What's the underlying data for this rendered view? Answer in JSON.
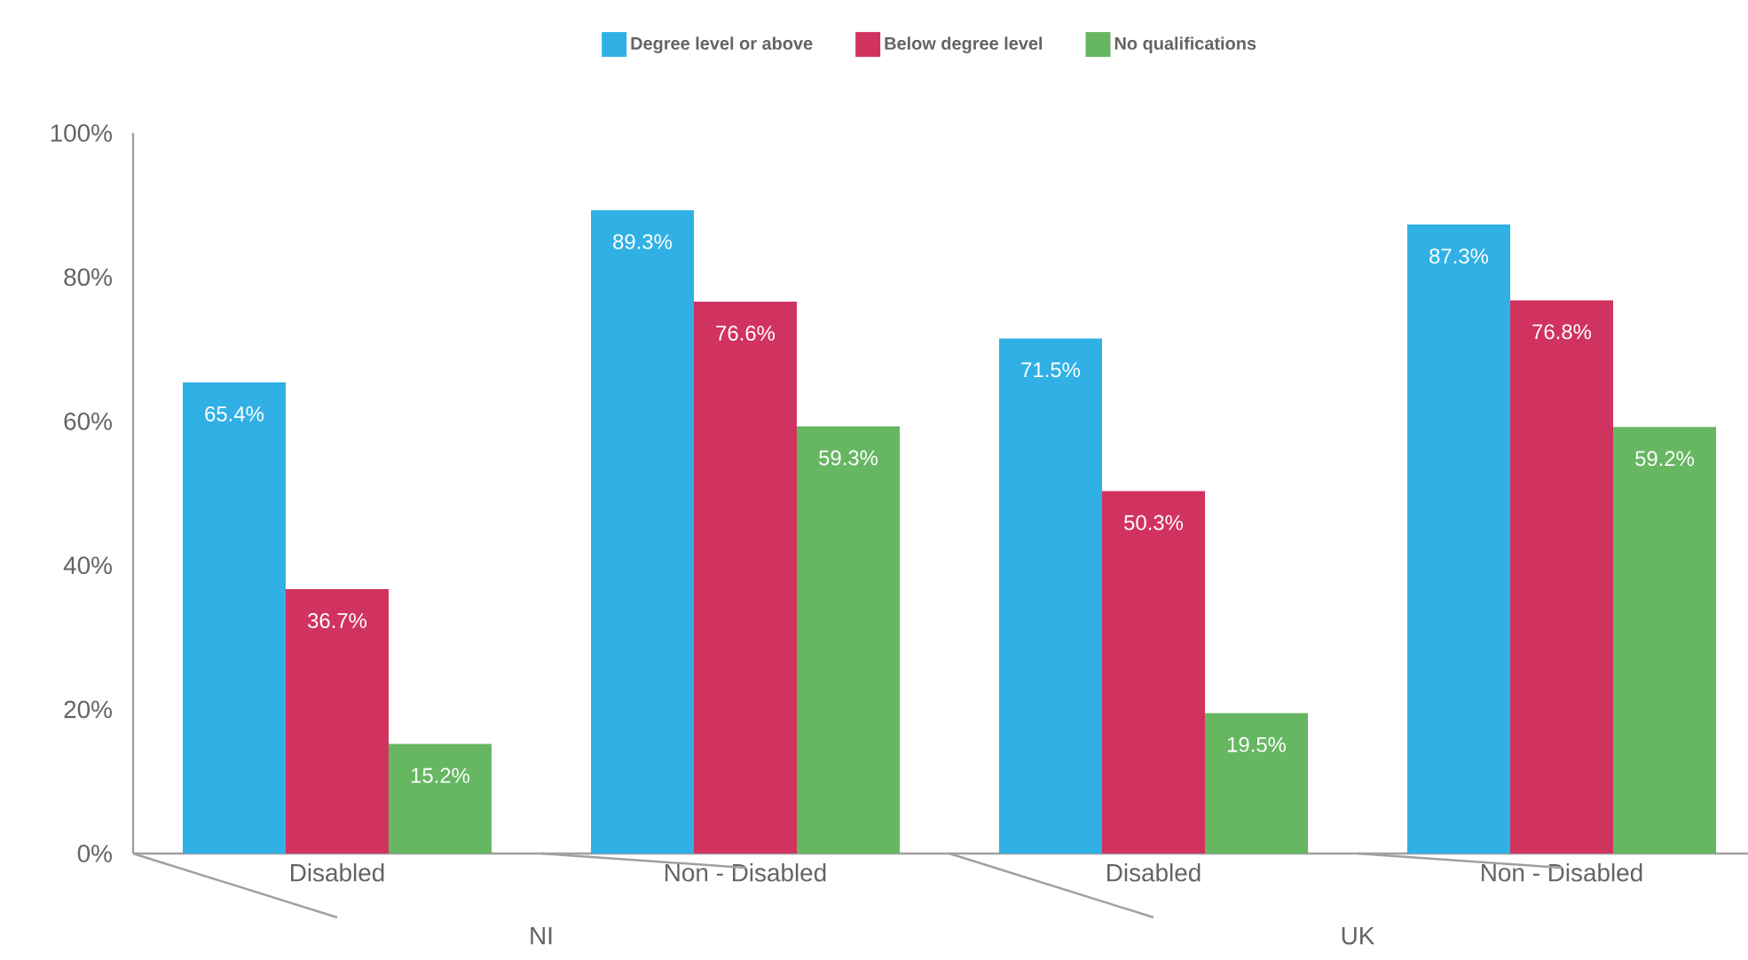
{
  "chart_data": {
    "type": "bar",
    "categories": [
      "Disabled",
      "Non - Disabled",
      "Disabled",
      "Non - Disabled"
    ],
    "series": [
      {
        "name": "Degree level or above",
        "color": "#30b0e4",
        "values": [
          65.4,
          89.3,
          71.5,
          87.3
        ],
        "value_labels": [
          "65.4%",
          "89.3%",
          "71.5%",
          "87.3%"
        ]
      },
      {
        "name": "Below degree level",
        "color": "#d03360",
        "values": [
          36.7,
          76.6,
          50.3,
          76.8
        ],
        "value_labels": [
          "36.7%",
          "76.6%",
          "50.3%",
          "76.8%"
        ]
      },
      {
        "name": "No qualifications",
        "color": "#66b662",
        "values": [
          15.2,
          59.3,
          19.5,
          59.2
        ],
        "value_labels": [
          "15.2%",
          "59.3%",
          "19.5%",
          "59.2%"
        ]
      }
    ],
    "ylim": [
      0,
      100
    ],
    "yticks": [
      {
        "value": 0,
        "label": "0%"
      },
      {
        "value": 20,
        "label": "20%"
      },
      {
        "value": 40,
        "label": "40%"
      },
      {
        "value": 60,
        "label": "60%"
      },
      {
        "value": 80,
        "label": "80%"
      },
      {
        "value": 100,
        "label": "100%"
      }
    ],
    "legend": "top",
    "annotations": [
      "NI",
      "UK"
    ]
  }
}
